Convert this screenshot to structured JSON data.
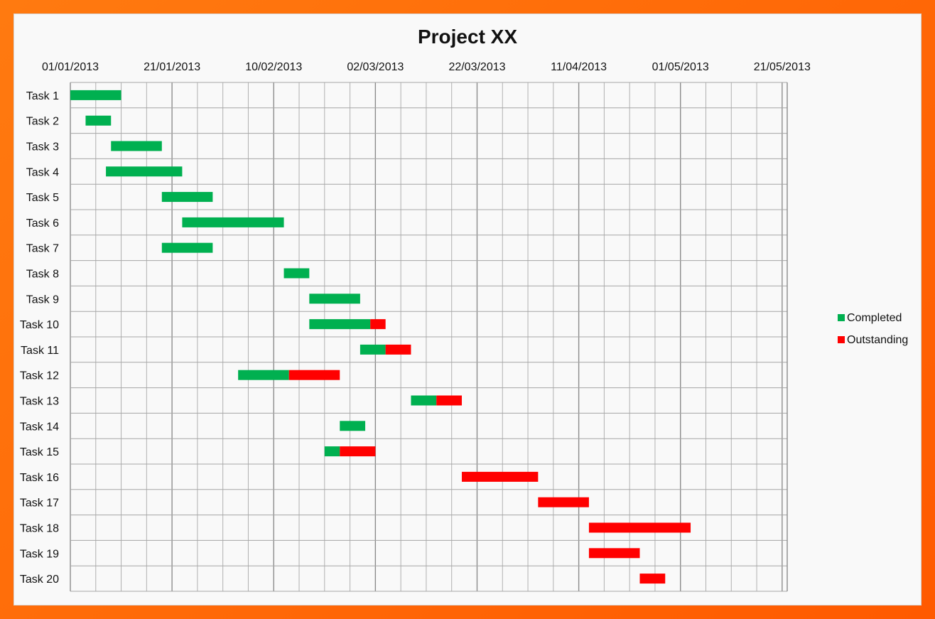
{
  "chart_data": {
    "type": "bar",
    "orientation": "horizontal-stacked",
    "title": "Project XX",
    "xlabel": "",
    "ylabel": "",
    "x_tick_labels": [
      "01/01/2013",
      "21/01/2013",
      "10/02/2013",
      "02/03/2013",
      "22/03/2013",
      "11/04/2013",
      "01/05/2013",
      "21/05/2013"
    ],
    "xlim": [
      "2013-01-01",
      "2013-05-22"
    ],
    "x_tick_step_days": 20,
    "grid": true,
    "legend_position": "right",
    "categories": [
      "Task 1",
      "Task 2",
      "Task 3",
      "Task 4",
      "Task 5",
      "Task 6",
      "Task 7",
      "Task 8",
      "Task 9",
      "Task 10",
      "Task 11",
      "Task 12",
      "Task 13",
      "Task 14",
      "Task 15",
      "Task 16",
      "Task 17",
      "Task 18",
      "Task 19",
      "Task 20"
    ],
    "tasks": [
      {
        "start": "2013-01-01",
        "completed_days": 10,
        "outstanding_days": 0
      },
      {
        "start": "2013-01-04",
        "completed_days": 5,
        "outstanding_days": 0
      },
      {
        "start": "2013-01-09",
        "completed_days": 10,
        "outstanding_days": 0
      },
      {
        "start": "2013-01-08",
        "completed_days": 15,
        "outstanding_days": 0
      },
      {
        "start": "2013-01-19",
        "completed_days": 10,
        "outstanding_days": 0
      },
      {
        "start": "2013-01-23",
        "completed_days": 20,
        "outstanding_days": 0
      },
      {
        "start": "2013-01-19",
        "completed_days": 10,
        "outstanding_days": 0
      },
      {
        "start": "2013-02-12",
        "completed_days": 5,
        "outstanding_days": 0
      },
      {
        "start": "2013-02-17",
        "completed_days": 10,
        "outstanding_days": 0
      },
      {
        "start": "2013-02-17",
        "completed_days": 12,
        "outstanding_days": 3
      },
      {
        "start": "2013-02-27",
        "completed_days": 5,
        "outstanding_days": 5
      },
      {
        "start": "2013-02-03",
        "completed_days": 10,
        "outstanding_days": 10
      },
      {
        "start": "2013-03-09",
        "completed_days": 5,
        "outstanding_days": 5
      },
      {
        "start": "2013-02-23",
        "completed_days": 5,
        "outstanding_days": 0
      },
      {
        "start": "2013-02-20",
        "completed_days": 3,
        "outstanding_days": 7
      },
      {
        "start": "2013-03-19",
        "completed_days": 0,
        "outstanding_days": 15
      },
      {
        "start": "2013-04-03",
        "completed_days": 0,
        "outstanding_days": 10
      },
      {
        "start": "2013-04-13",
        "completed_days": 0,
        "outstanding_days": 20
      },
      {
        "start": "2013-04-13",
        "completed_days": 0,
        "outstanding_days": 10
      },
      {
        "start": "2013-04-23",
        "completed_days": 0,
        "outstanding_days": 5
      }
    ],
    "series": [
      {
        "name": "Completed",
        "color": "#00b050"
      },
      {
        "name": "Outstanding",
        "color": "#ff0000"
      }
    ]
  }
}
